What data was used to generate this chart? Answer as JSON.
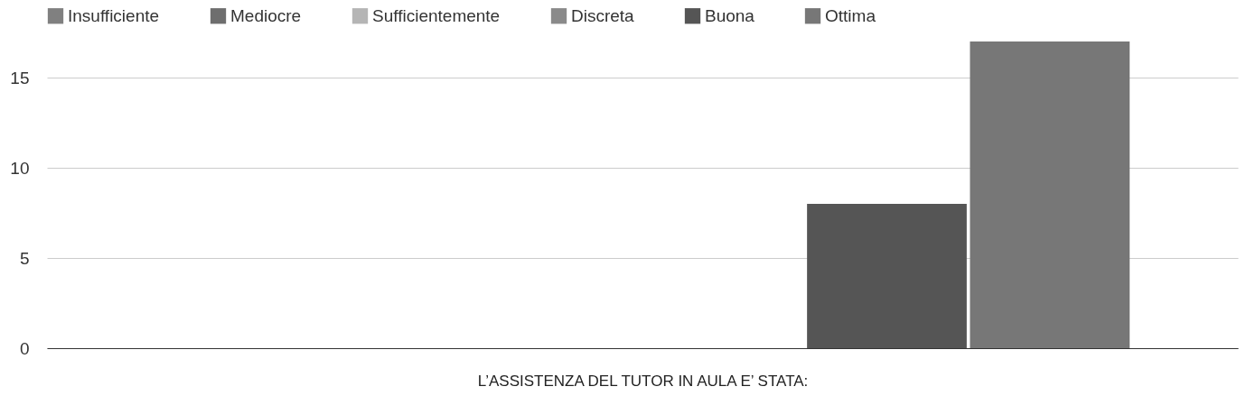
{
  "chart_data": {
    "type": "bar",
    "xlabel": "L’ASSISTENZA DEL TUTOR IN AULA E’ STATA:",
    "categories": [
      null
    ],
    "series": [
      {
        "name": "Insufficiente",
        "color": "#808080",
        "values": [
          0
        ]
      },
      {
        "name": "Mediocre",
        "color": "#6e6e6e",
        "values": [
          0
        ]
      },
      {
        "name": "Sufficientemente",
        "color": "#b5b5b5",
        "values": [
          0
        ]
      },
      {
        "name": "Discreta",
        "color": "#8a8a8a",
        "values": [
          0
        ]
      },
      {
        "name": "Buona",
        "color": "#555555",
        "values": [
          8
        ]
      },
      {
        "name": "Ottima",
        "color": "#777777",
        "values": [
          17
        ]
      }
    ],
    "ylim": [
      0,
      17
    ],
    "yticks": [
      0,
      5,
      10,
      15
    ],
    "grid": "y",
    "legend": "top"
  }
}
